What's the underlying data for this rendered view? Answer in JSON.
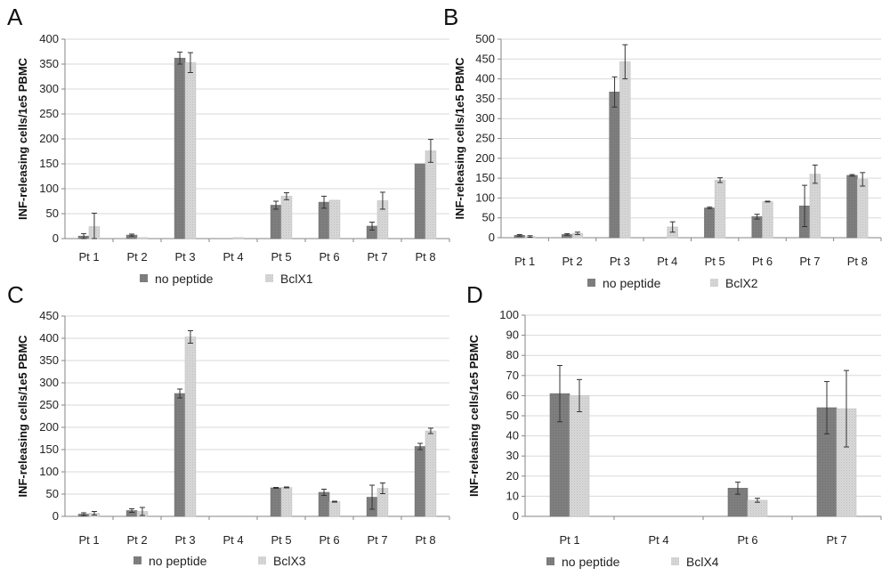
{
  "chart_data": [
    {
      "type": "bar",
      "panel": "A",
      "categories": [
        "Pt 1",
        "Pt 2",
        "Pt 3",
        "Pt 4",
        "Pt 5",
        "Pt 6",
        "Pt 7",
        "Pt 8"
      ],
      "series": [
        {
          "name": "no peptide",
          "values": [
            5,
            7,
            362,
            0,
            67,
            73,
            25,
            150
          ],
          "errors": [
            5,
            2,
            12,
            0,
            8,
            12,
            8,
            0
          ]
        },
        {
          "name": "BclX1",
          "values": [
            24,
            2,
            353,
            2,
            85,
            77,
            76,
            176
          ],
          "errors": [
            27,
            0,
            20,
            0,
            7,
            0,
            17,
            23
          ]
        }
      ],
      "ylabel": "INF\u0003-releasing cells/1e5 PBMC",
      "ylim": [
        0,
        400
      ],
      "yticks": [
        "0",
        "50",
        "100",
        "150",
        "200",
        "250",
        "300",
        "350",
        "400"
      ],
      "grid": true,
      "legend_position": "bottom"
    },
    {
      "type": "bar",
      "panel": "B",
      "categories": [
        "Pt 1",
        "Pt 2",
        "Pt 3",
        "Pt 4",
        "Pt 5",
        "Pt 6",
        "Pt 7",
        "Pt 8"
      ],
      "series": [
        {
          "name": "no peptide",
          "values": [
            6,
            8,
            367,
            0,
            75,
            53,
            80,
            157
          ],
          "errors": [
            2,
            2,
            38,
            0,
            2,
            6,
            52,
            2
          ]
        },
        {
          "name": "BclX2",
          "values": [
            3,
            11,
            443,
            27,
            145,
            91,
            160,
            147
          ],
          "errors": [
            2,
            3,
            43,
            13,
            6,
            1,
            23,
            17
          ]
        }
      ],
      "ylabel": "INF\u0003-releasing cells/1e5 PBMC",
      "ylim": [
        0,
        500
      ],
      "yticks": [
        "0",
        "50",
        "100",
        "150",
        "200",
        "250",
        "300",
        "350",
        "400",
        "450",
        "500"
      ],
      "grid": true,
      "legend_position": "bottom"
    },
    {
      "type": "bar",
      "panel": "C",
      "categories": [
        "Pt 1",
        "Pt 2",
        "Pt 3",
        "Pt 4",
        "Pt 5",
        "Pt 6",
        "Pt 7",
        "Pt 8"
      ],
      "series": [
        {
          "name": "no peptide",
          "values": [
            5,
            13,
            276,
            0,
            64,
            54,
            43,
            157
          ],
          "errors": [
            3,
            4,
            10,
            0,
            1,
            7,
            27,
            7
          ]
        },
        {
          "name": "BclX3",
          "values": [
            7,
            11,
            403,
            0,
            65,
            33,
            63,
            192
          ],
          "errors": [
            4,
            9,
            14,
            0,
            1,
            1,
            12,
            6
          ]
        }
      ],
      "ylabel": "INF\u0003-releasing cells/1e5 PBMC",
      "ylim": [
        0,
        450
      ],
      "yticks": [
        "0",
        "50",
        "100",
        "150",
        "200",
        "250",
        "300",
        "350",
        "400",
        "450"
      ],
      "grid": true,
      "legend_position": "bottom"
    },
    {
      "type": "bar",
      "panel": "D",
      "categories": [
        "Pt 1",
        "Pt 4",
        "Pt 6",
        "Pt 7"
      ],
      "series": [
        {
          "name": "no peptide",
          "values": [
            61,
            0,
            14,
            54
          ],
          "errors": [
            14,
            0,
            3,
            13
          ]
        },
        {
          "name": "BclX4",
          "values": [
            60,
            0,
            8,
            53.5
          ],
          "errors": [
            8,
            0,
            1,
            19
          ]
        }
      ],
      "ylabel": "INF\u0003-releasing cells/1e5 PBMC",
      "ylim": [
        0,
        100
      ],
      "yticks": [
        "0",
        "10",
        "20",
        "30",
        "40",
        "50",
        "60",
        "70",
        "80",
        "90",
        "100"
      ],
      "grid": true,
      "legend_position": "bottom"
    }
  ],
  "colors": {
    "series1": "#7f7f7f",
    "series2": "#d3d3d3",
    "grid": "#d9d9d9",
    "axis": "#868686",
    "error": "#333333"
  }
}
